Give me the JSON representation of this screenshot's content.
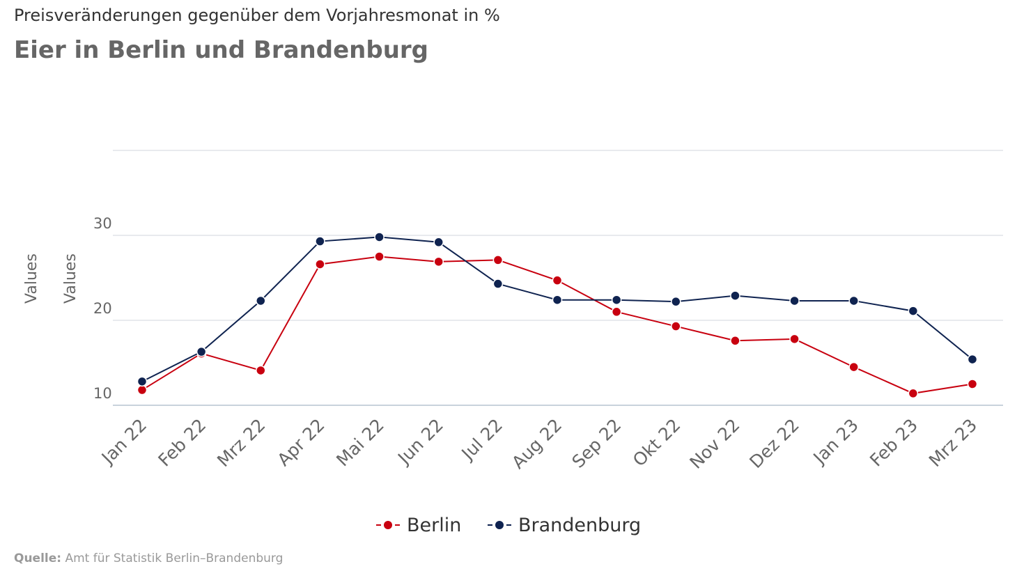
{
  "header": {
    "subtitle": "Preisveränderungen gegenüber dem Vorjahresmonat in %",
    "title": "Eier in Berlin und Brandenburg"
  },
  "source": {
    "label": "Quelle:",
    "text": "Amt für Statistik Berlin–Brandenburg"
  },
  "colors": {
    "berlin": "#c8000f",
    "brandenburg": "#0f2350",
    "grid": "#e0e4e8",
    "axis_text": "#666666"
  },
  "chart_data": {
    "type": "line",
    "title": "Eier in Berlin und Brandenburg",
    "subtitle": "Preisveränderungen gegenüber dem Vorjahresmonat in %",
    "ylabels": [
      "Values",
      "Values"
    ],
    "xlabel": "",
    "categories": [
      "Jan 22",
      "Feb 22",
      "Mrz 22",
      "Apr 22",
      "Mai 22",
      "Jun 22",
      "Jul 22",
      "Aug 22",
      "Sep 22",
      "Okt 22",
      "Nov 22",
      "Dez 22",
      "Jan 23",
      "Feb 23",
      "Mrz 23"
    ],
    "ylim": [
      10,
      40
    ],
    "yticks": [
      10,
      20,
      30
    ],
    "grid": true,
    "legend_position": "bottom-center",
    "series": [
      {
        "name": "Berlin",
        "color": "#c8000f",
        "values": [
          11.8,
          16.1,
          14.1,
          26.6,
          27.5,
          26.9,
          27.1,
          24.7,
          21.0,
          19.3,
          17.6,
          17.8,
          14.5,
          11.4,
          12.5
        ]
      },
      {
        "name": "Brandenburg",
        "color": "#0f2350",
        "values": [
          12.8,
          16.3,
          22.3,
          29.3,
          29.8,
          29.2,
          24.3,
          22.4,
          22.4,
          22.2,
          22.9,
          22.3,
          22.3,
          21.1,
          15.4
        ]
      }
    ]
  }
}
